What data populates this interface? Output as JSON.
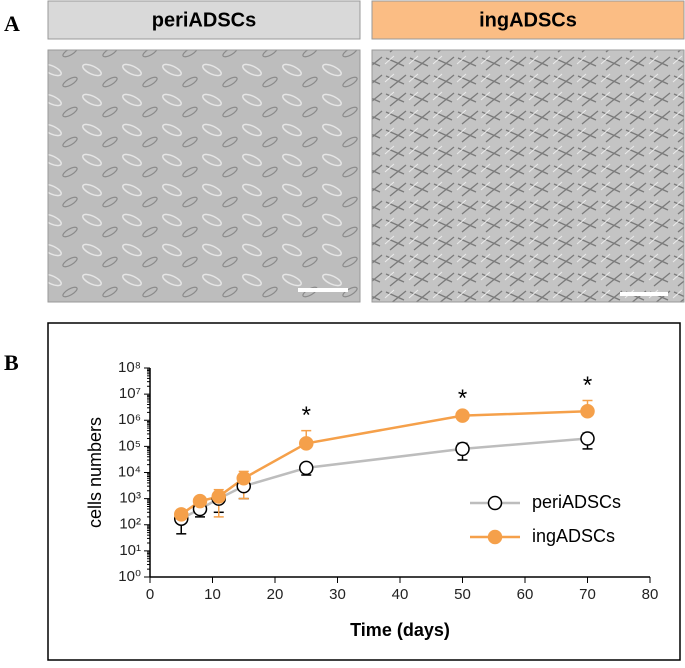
{
  "panels": {
    "a_label": "A",
    "b_label": "B",
    "image_left": "periADSCs",
    "image_right": "ingADSCs"
  },
  "chart_data": {
    "type": "line",
    "x_label": "Time (days)",
    "y_label": "cells numbers",
    "x": [
      5,
      8,
      11,
      15,
      25,
      50,
      70
    ],
    "series": [
      {
        "name": "periADSCs",
        "color": "#bdbdbd",
        "marker_fill": "#ffffff",
        "values": [
          170,
          400,
          1000,
          3000,
          15000,
          80000,
          200000
        ],
        "errors": [
          125,
          200,
          700,
          2000,
          7000,
          50000,
          120000
        ]
      },
      {
        "name": "ingADSCs",
        "color": "#f5a04a",
        "marker_fill": "#f5a04a",
        "values": [
          250,
          800,
          1200,
          6000,
          130000,
          1500000,
          2200000
        ],
        "errors": [
          100,
          400,
          1000,
          5000,
          270000,
          300000,
          3500000
        ]
      }
    ],
    "annotations": [
      {
        "text": "*",
        "x": 25,
        "series": 1
      },
      {
        "text": "*",
        "x": 50,
        "series": 1
      },
      {
        "text": "*",
        "x": 70,
        "series": 1
      }
    ],
    "xlim": [
      0,
      80
    ],
    "xticks": [
      0,
      10,
      20,
      30,
      40,
      50,
      60,
      70,
      80
    ],
    "ylim": [
      1,
      100000000
    ],
    "log_y": true,
    "yticks": [
      {
        "value": 1,
        "label": "10⁰"
      },
      {
        "value": 10,
        "label": "10¹"
      },
      {
        "value": 100,
        "label": "10²"
      },
      {
        "value": 1000,
        "label": "10³"
      },
      {
        "value": 10000,
        "label": "10⁴"
      },
      {
        "value": 100000,
        "label": "10⁵"
      },
      {
        "value": 1000000,
        "label": "10⁶"
      },
      {
        "value": 10000000,
        "label": "10⁷"
      },
      {
        "value": 100000000,
        "label": "10⁸"
      }
    ],
    "legend": "lower right"
  }
}
